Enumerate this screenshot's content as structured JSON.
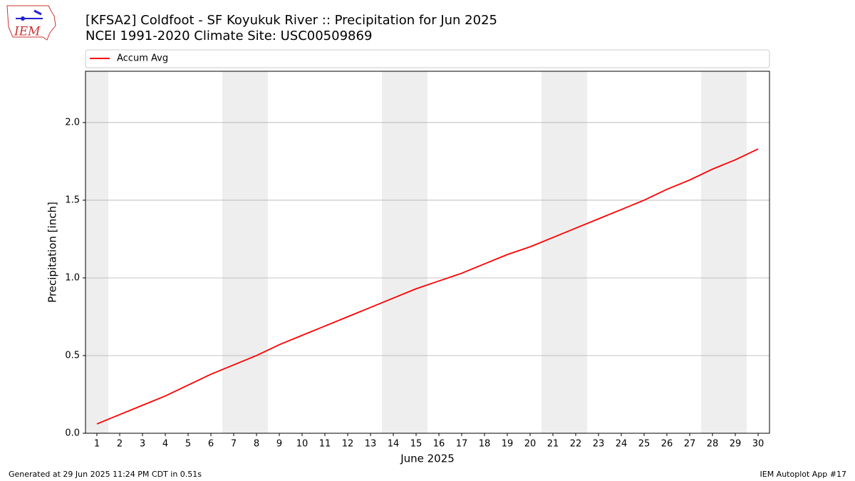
{
  "chart_data": {
    "type": "line",
    "title": "[KFSA2] Coldfoot - SF Koyukuk River :: Precipitation for Jun 2025",
    "subtitle": "NCEI 1991-2020 Climate Site: USC00509869",
    "x_label": "June 2025",
    "y_label": "Precipitation [inch]",
    "x": [
      1,
      2,
      3,
      4,
      5,
      6,
      7,
      8,
      9,
      10,
      11,
      12,
      13,
      14,
      15,
      16,
      17,
      18,
      19,
      20,
      21,
      22,
      23,
      24,
      25,
      26,
      27,
      28,
      29,
      30
    ],
    "series": [
      {
        "name": "Accum Avg",
        "color": "#ff0000",
        "values": [
          0.06,
          0.12,
          0.18,
          0.24,
          0.31,
          0.38,
          0.44,
          0.5,
          0.57,
          0.63,
          0.69,
          0.75,
          0.81,
          0.87,
          0.93,
          0.98,
          1.03,
          1.09,
          1.15,
          1.2,
          1.26,
          1.32,
          1.38,
          1.44,
          1.5,
          1.57,
          1.63,
          1.7,
          1.76,
          1.83
        ]
      }
    ],
    "xlim": [
      0.5,
      30.5
    ],
    "ylim": [
      0,
      2.33
    ],
    "xticks": [
      1,
      2,
      3,
      4,
      5,
      6,
      7,
      8,
      9,
      10,
      11,
      12,
      13,
      14,
      15,
      16,
      17,
      18,
      19,
      20,
      21,
      22,
      23,
      24,
      25,
      26,
      27,
      28,
      29,
      30
    ],
    "yticks": [
      {
        "value": 0,
        "label": "0.0"
      },
      0.5,
      {
        "value": 1,
        "label": "1.0"
      },
      1.5,
      {
        "value": 2,
        "label": "2.0"
      }
    ],
    "grid": true,
    "shaded_ranges": [
      [
        0.5,
        1.5
      ],
      [
        6.5,
        8.5
      ],
      [
        13.5,
        15.5
      ],
      [
        20.5,
        22.5
      ],
      [
        27.5,
        29.5
      ]
    ],
    "shade_color": "#eeeeee",
    "legend": "top"
  },
  "logo": "IEM",
  "footer": {
    "left": "Generated at 29 Jun 2025 11:24 PM CDT in 0.51s",
    "right": "IEM Autoplot App #17"
  }
}
